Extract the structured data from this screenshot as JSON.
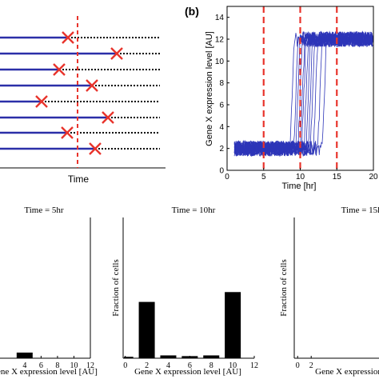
{
  "panel_a": {
    "xlabel": "Time",
    "cutoff_x": 97,
    "rows": [
      {
        "y": 47,
        "x_mark": 85
      },
      {
        "y": 67,
        "x_mark": 146
      },
      {
        "y": 87,
        "x_mark": 74
      },
      {
        "y": 107,
        "x_mark": 115
      },
      {
        "y": 127,
        "x_mark": 52
      },
      {
        "y": 147,
        "x_mark": 135
      },
      {
        "y": 166,
        "x_mark": 84
      },
      {
        "y": 186,
        "x_mark": 119
      }
    ],
    "colors": {
      "line": "#2b2fa8",
      "dots": "#000000",
      "mark": "#e8342c",
      "cutoff": "#e8342c"
    }
  },
  "panel_b": {
    "label": "(b)",
    "chart_data": {
      "type": "line",
      "xlabel": "Time [hr]",
      "ylabel": "Gene X expression level [AU]",
      "xlim": [
        0,
        20
      ],
      "ylim": [
        0,
        15
      ],
      "xticks": [
        "0",
        "5",
        "10",
        "15",
        "20"
      ],
      "yticks": [
        "0",
        "2",
        "4",
        "6",
        "8",
        "10",
        "12",
        "14"
      ],
      "low_level": 2,
      "high_level": 12,
      "noise": 0.7,
      "switch_times": [
        8.6,
        9.1,
        9.4,
        9.7,
        10.0,
        10.2,
        10.5,
        10.8,
        11.1,
        11.4,
        11.8,
        12.4,
        13.0
      ],
      "vlines": [
        5,
        10,
        15
      ],
      "colors": {
        "traces": "#2d35b8",
        "vlines": "#e8342c"
      }
    }
  },
  "histograms": [
    {
      "title": "Time = 5hr",
      "ylabel": "",
      "xlabel": "Gene X expression level [AU]",
      "xticks": [
        "4",
        "6",
        "8",
        "10",
        "12"
      ],
      "chart_data": {
        "type": "bar",
        "x": [
          4
        ],
        "values": [
          0.04
        ],
        "ylim": [
          0,
          1
        ]
      }
    },
    {
      "title": "Time = 10hr",
      "ylabel": "Fraction of cells",
      "xlabel": "Gene X expression level [AU]",
      "xticks": [
        "0",
        "2",
        "4",
        "6",
        "8",
        "10",
        "12"
      ],
      "chart_data": {
        "type": "bar",
        "x": [
          0,
          2,
          4,
          6,
          8,
          10
        ],
        "values": [
          0.01,
          0.4,
          0.02,
          0.015,
          0.02,
          0.47
        ],
        "ylim": [
          0,
          1
        ]
      }
    },
    {
      "title": "Time = 15hr",
      "ylabel": "Fraction of cells",
      "xlabel": "Gene X expression",
      "xticks": [
        "0",
        "2"
      ],
      "chart_data": {
        "type": "bar",
        "x": [],
        "values": [],
        "ylim": [
          0,
          1
        ]
      }
    }
  ]
}
